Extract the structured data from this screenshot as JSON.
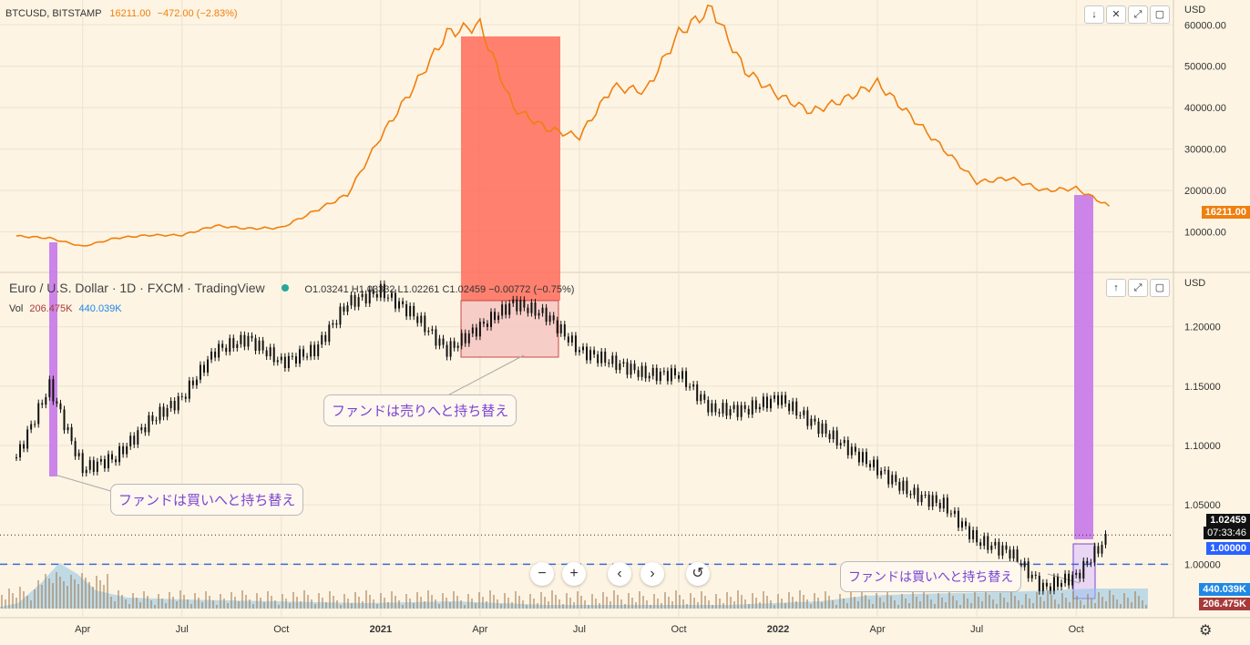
{
  "top_pane": {
    "symbol": "BTCUSD, BITSTAMP",
    "price": "16211.00",
    "change": "−472.00 (−2.83%)",
    "currency": "USD",
    "last_price_tag": "16211.00",
    "buttons": [
      "↓",
      "✕",
      "⤢",
      "▢"
    ]
  },
  "bottom_pane": {
    "symbol": "Euro / U.S. Dollar · 1D · FXCM · TradingView",
    "ohlc": "O1.03241  H1.03332  L1.02261  C1.02459  −0.00772 (−0.75%)",
    "vol_label": "Vol",
    "vol_value1": "206.475K",
    "vol_value2": "440.039K",
    "currency": "USD",
    "buttons": [
      "↑",
      "⤢",
      "▢"
    ],
    "last_price_tag": "1.02459",
    "countdown_tag": "07:33:46",
    "level_tag": "1.00000",
    "vol_tag1": "440.039K",
    "vol_tag2": "206.475K"
  },
  "annotations": {
    "a1": "ファンドは買いへと持ち替え",
    "a2": "ファンドは売りへと持ち替え",
    "a3": "ファンドは買いへと持ち替え"
  },
  "toolbar": {
    "zoom_out": "−",
    "zoom_in": "+",
    "left": "‹",
    "right": "›",
    "reset": "↺"
  },
  "settings_icon": "⚙",
  "colors": {
    "btc_line": "#f07f0e",
    "eur_candles": "#111111",
    "highlight_red": "#ff6b5b",
    "highlight_purple": "#c678e8",
    "dashed_level": "#3a6bd8",
    "volume_area": "#8ec4e8"
  },
  "chart_data": [
    {
      "type": "line",
      "series": [
        {
          "name": "BTCUSD",
          "x": [
            "2020-02",
            "2020-03",
            "2020-04",
            "2020-05",
            "2020-06",
            "2020-07",
            "2020-08",
            "2020-09",
            "2020-10",
            "2020-11",
            "2020-12",
            "2021-01",
            "2021-02",
            "2021-03",
            "2021-04",
            "2021-05",
            "2021-06",
            "2021-07",
            "2021-08",
            "2021-09",
            "2021-10",
            "2021-11",
            "2021-12",
            "2022-01",
            "2022-02",
            "2022-03",
            "2022-04",
            "2022-05",
            "2022-06",
            "2022-07",
            "2022-08",
            "2022-09",
            "2022-10",
            "2022-11"
          ],
          "values": [
            9000,
            8500,
            6500,
            8500,
            9200,
            9200,
            11500,
            10800,
            11000,
            15000,
            19000,
            33000,
            45000,
            58000,
            60000,
            40000,
            35000,
            33000,
            45000,
            44000,
            58000,
            64000,
            49000,
            43000,
            39000,
            42000,
            46000,
            38000,
            30000,
            22000,
            23000,
            20000,
            20500,
            16211
          ]
        }
      ],
      "xlabels": [
        "Apr",
        "Jul",
        "Oct",
        "2021",
        "Apr",
        "Jul",
        "Oct",
        "2022",
        "Apr",
        "Jul",
        "Oct"
      ],
      "ylabels": [
        "10000.00",
        "20000.00",
        "30000.00",
        "40000.00",
        "50000.00",
        "60000.00"
      ],
      "ylim": [
        0,
        66000
      ]
    },
    {
      "type": "line",
      "series": [
        {
          "name": "EURUSD",
          "x": [
            "2020-02",
            "2020-03",
            "2020-04",
            "2020-05",
            "2020-06",
            "2020-07",
            "2020-08",
            "2020-09",
            "2020-10",
            "2020-11",
            "2020-12",
            "2021-01",
            "2021-02",
            "2021-03",
            "2021-04",
            "2021-05",
            "2021-06",
            "2021-07",
            "2021-08",
            "2021-09",
            "2021-10",
            "2021-11",
            "2021-12",
            "2022-01",
            "2022-02",
            "2022-03",
            "2022-04",
            "2022-05",
            "2022-06",
            "2022-07",
            "2022-08",
            "2022-09",
            "2022-10",
            "2022-11"
          ],
          "values": [
            1.09,
            1.15,
            1.08,
            1.09,
            1.12,
            1.14,
            1.18,
            1.19,
            1.17,
            1.18,
            1.22,
            1.23,
            1.21,
            1.18,
            1.2,
            1.22,
            1.21,
            1.18,
            1.17,
            1.16,
            1.16,
            1.13,
            1.13,
            1.14,
            1.12,
            1.1,
            1.08,
            1.06,
            1.05,
            1.02,
            1.01,
            0.98,
            0.99,
            1.02459
          ]
        }
      ],
      "ylabels": [
        "1.00000",
        "1.05000",
        "1.10000",
        "1.15000",
        "1.20000"
      ],
      "ylim": [
        0.955,
        1.245
      ]
    }
  ]
}
